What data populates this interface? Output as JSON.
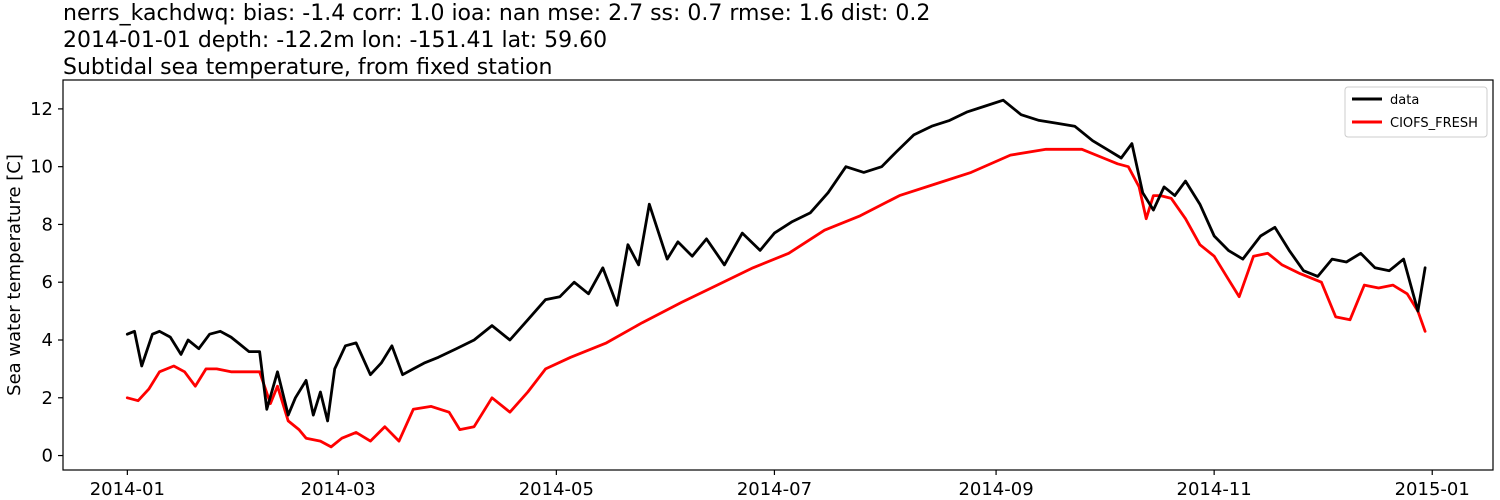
{
  "title": {
    "line1": "nerrs_kachdwq: bias: -1.4  corr: 1.0  ioa: nan  mse: 2.7  ss: 0.7  rmse: 1.6  dist: 0.2",
    "line2": "2014-01-01 depth: -12.2m lon: -151.41 lat: 59.60",
    "line3": "Subtidal sea temperature, from fixed station"
  },
  "chart_data": {
    "type": "line",
    "ylabel": "Sea water temperature [C]",
    "xlabel": "",
    "x_axis_type": "date",
    "xlim": [
      "2013-12-14",
      "2015-01-18"
    ],
    "ylim": [
      -0.5,
      13.0
    ],
    "x_ticks": [
      "2014-01",
      "2014-03",
      "2014-05",
      "2014-07",
      "2014-09",
      "2014-11",
      "2015-01"
    ],
    "x_tick_dates": [
      "2014-01-01",
      "2014-03-01",
      "2014-05-01",
      "2014-07-01",
      "2014-09-01",
      "2014-11-01",
      "2015-01-01"
    ],
    "y_ticks": [
      0,
      2,
      4,
      6,
      8,
      10,
      12
    ],
    "grid": false,
    "legend_position": "top-right",
    "series": [
      {
        "name": "data",
        "color": "#000000",
        "x": [
          "2014-01-01",
          "2014-01-03",
          "2014-01-05",
          "2014-01-08",
          "2014-01-10",
          "2014-01-13",
          "2014-01-16",
          "2014-01-18",
          "2014-01-21",
          "2014-01-24",
          "2014-01-27",
          "2014-01-30",
          "2014-02-01",
          "2014-02-04",
          "2014-02-07",
          "2014-02-09",
          "2014-02-12",
          "2014-02-15",
          "2014-02-17",
          "2014-02-20",
          "2014-02-22",
          "2014-02-24",
          "2014-02-26",
          "2014-02-28",
          "2014-03-03",
          "2014-03-06",
          "2014-03-10",
          "2014-03-13",
          "2014-03-16",
          "2014-03-19",
          "2014-03-22",
          "2014-03-25",
          "2014-03-29",
          "2014-04-03",
          "2014-04-08",
          "2014-04-13",
          "2014-04-18",
          "2014-04-23",
          "2014-04-28",
          "2014-05-02",
          "2014-05-06",
          "2014-05-10",
          "2014-05-14",
          "2014-05-18",
          "2014-05-21",
          "2014-05-24",
          "2014-05-27",
          "2014-06-01",
          "2014-06-04",
          "2014-06-08",
          "2014-06-12",
          "2014-06-17",
          "2014-06-22",
          "2014-06-27",
          "2014-07-01",
          "2014-07-06",
          "2014-07-11",
          "2014-07-16",
          "2014-07-21",
          "2014-07-26",
          "2014-07-31",
          "2014-08-04",
          "2014-08-09",
          "2014-08-14",
          "2014-08-19",
          "2014-08-24",
          "2014-08-29",
          "2014-09-03",
          "2014-09-08",
          "2014-09-13",
          "2014-09-18",
          "2014-09-23",
          "2014-09-28",
          "2014-10-02",
          "2014-10-06",
          "2014-10-09",
          "2014-10-12",
          "2014-10-15",
          "2014-10-18",
          "2014-10-21",
          "2014-10-24",
          "2014-10-28",
          "2014-11-01",
          "2014-11-05",
          "2014-11-09",
          "2014-11-14",
          "2014-11-18",
          "2014-11-22",
          "2014-11-26",
          "2014-11-30",
          "2014-12-04",
          "2014-12-08",
          "2014-12-12",
          "2014-12-16",
          "2014-12-20",
          "2014-12-24",
          "2014-12-28",
          "2014-12-30"
        ],
        "y": [
          4.2,
          4.3,
          3.1,
          4.2,
          4.3,
          4.1,
          3.5,
          4.0,
          3.7,
          4.2,
          4.3,
          4.1,
          3.9,
          3.6,
          3.6,
          1.6,
          2.9,
          1.4,
          2.0,
          2.6,
          1.4,
          2.2,
          1.2,
          3.0,
          3.8,
          3.9,
          2.8,
          3.2,
          3.8,
          2.8,
          3.0,
          3.2,
          3.4,
          3.7,
          4.0,
          4.5,
          4.0,
          4.7,
          5.4,
          5.5,
          6.0,
          5.6,
          6.5,
          5.2,
          7.3,
          6.6,
          8.7,
          6.8,
          7.4,
          6.9,
          7.5,
          6.6,
          7.7,
          7.1,
          7.7,
          8.1,
          8.4,
          9.1,
          10.0,
          9.8,
          10.0,
          10.5,
          11.1,
          11.4,
          11.6,
          11.9,
          12.1,
          12.3,
          11.8,
          11.6,
          11.5,
          11.4,
          10.9,
          10.6,
          10.3,
          10.8,
          9.1,
          8.5,
          9.3,
          9.0,
          9.5,
          8.7,
          7.6,
          7.1,
          6.8,
          7.6,
          7.9,
          7.1,
          6.4,
          6.2,
          6.8,
          6.7,
          7.0,
          6.5,
          6.4,
          6.8,
          5.0,
          6.5
        ]
      },
      {
        "name": "CIOFS_FRESH",
        "color": "#ff0000",
        "x": [
          "2014-01-01",
          "2014-01-04",
          "2014-01-07",
          "2014-01-10",
          "2014-01-14",
          "2014-01-17",
          "2014-01-20",
          "2014-01-23",
          "2014-01-26",
          "2014-01-30",
          "2014-02-03",
          "2014-02-07",
          "2014-02-10",
          "2014-02-12",
          "2014-02-15",
          "2014-02-18",
          "2014-02-20",
          "2014-02-24",
          "2014-02-27",
          "2014-03-02",
          "2014-03-06",
          "2014-03-10",
          "2014-03-14",
          "2014-03-18",
          "2014-03-22",
          "2014-03-27",
          "2014-04-01",
          "2014-04-04",
          "2014-04-08",
          "2014-04-13",
          "2014-04-18",
          "2014-04-23",
          "2014-04-28",
          "2014-05-05",
          "2014-05-15",
          "2014-05-25",
          "2014-06-05",
          "2014-06-15",
          "2014-06-25",
          "2014-07-05",
          "2014-07-15",
          "2014-07-25",
          "2014-08-05",
          "2014-08-15",
          "2014-08-25",
          "2014-09-05",
          "2014-09-15",
          "2014-09-25",
          "2014-10-01",
          "2014-10-05",
          "2014-10-08",
          "2014-10-11",
          "2014-10-13",
          "2014-10-15",
          "2014-10-17",
          "2014-10-20",
          "2014-10-24",
          "2014-10-28",
          "2014-11-01",
          "2014-11-05",
          "2014-11-08",
          "2014-11-12",
          "2014-11-16",
          "2014-11-20",
          "2014-11-25",
          "2014-12-01",
          "2014-12-05",
          "2014-12-09",
          "2014-12-13",
          "2014-12-17",
          "2014-12-21",
          "2014-12-25",
          "2014-12-28",
          "2014-12-30"
        ],
        "y": [
          2.0,
          1.9,
          2.3,
          2.9,
          3.1,
          2.9,
          2.4,
          3.0,
          3.0,
          2.9,
          2.9,
          2.9,
          1.8,
          2.4,
          1.2,
          0.9,
          0.6,
          0.5,
          0.3,
          0.6,
          0.8,
          0.5,
          1.0,
          0.5,
          1.6,
          1.7,
          1.5,
          0.9,
          1.0,
          2.0,
          1.5,
          2.2,
          3.0,
          3.4,
          3.9,
          4.6,
          5.3,
          5.9,
          6.5,
          7.0,
          7.8,
          8.3,
          9.0,
          9.4,
          9.8,
          10.4,
          10.6,
          10.6,
          10.3,
          10.1,
          10.0,
          9.3,
          8.2,
          9.0,
          9.0,
          8.9,
          8.2,
          7.3,
          6.9,
          6.1,
          5.5,
          6.9,
          7.0,
          6.6,
          6.3,
          6.0,
          4.8,
          4.7,
          5.9,
          5.8,
          5.9,
          5.6,
          5.0,
          4.3
        ]
      }
    ]
  }
}
